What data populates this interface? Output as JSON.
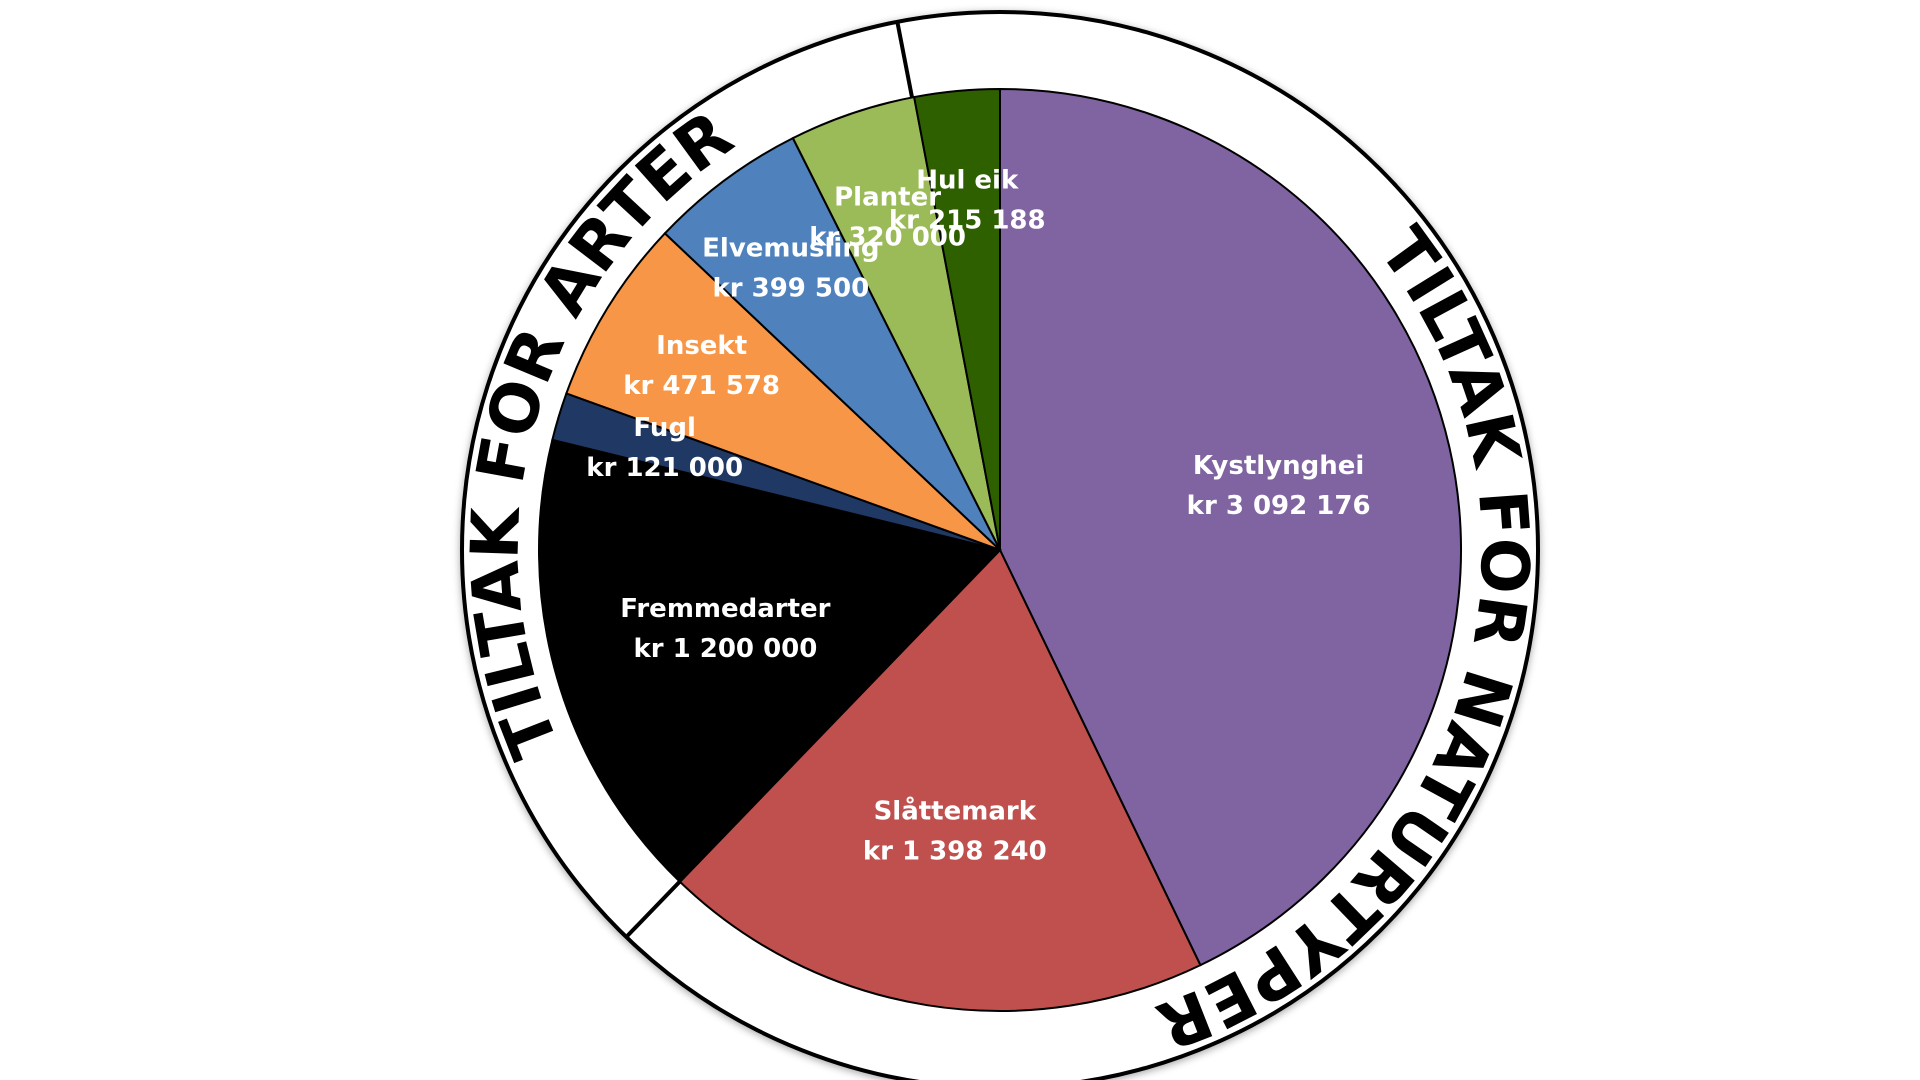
{
  "chart_data": {
    "type": "pie",
    "categories": [
      "Kystlynghei",
      "Slåttemark",
      "Fremmedarter",
      "Fugl",
      "Insekt",
      "Elvemusling",
      "Planter",
      "Hul eik"
    ],
    "values": [
      3092176,
      1398240,
      1200000,
      121000,
      471578,
      399500,
      320000,
      215188
    ],
    "value_labels": [
      "kr 3 092 176",
      "kr 1 398 240",
      "kr 1 200 000",
      "kr 121 000",
      "kr 471 578",
      "kr 399 500",
      "kr 320 000",
      "kr 215 188"
    ],
    "colors": [
      "#8064a2",
      "#c0504d",
      "#000000",
      "#1f3864",
      "#f79646",
      "#4f81bd",
      "#9bbb59",
      "#2e6000"
    ],
    "annotations": [
      "TILTAK FOR ARTER",
      "TILTAK FOR NATURTYPER"
    ]
  }
}
